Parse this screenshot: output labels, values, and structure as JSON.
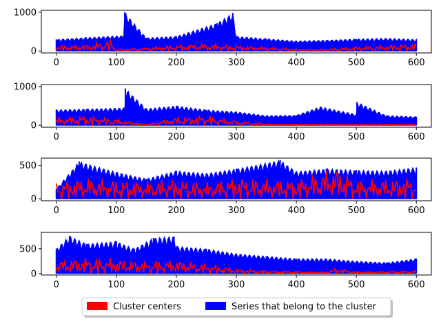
{
  "chart_data": {
    "type": "line",
    "layout": "4 stacked subplots sharing x range",
    "x_ticks": [
      "0",
      "100",
      "200",
      "300",
      "400",
      "500",
      "600"
    ],
    "xlim": [
      -25,
      625
    ],
    "legend": {
      "placement": "bottom-center",
      "entries": [
        {
          "label": "Cluster centers",
          "color": "#ff0000"
        },
        {
          "label": "Series that belong to the cluster",
          "color": "#0000ff"
        }
      ]
    },
    "grid": false,
    "subplots": [
      {
        "ylim": [
          -50,
          1050
        ],
        "y_ticks": [
          "0",
          "1000"
        ],
        "y_tick_values": [
          0,
          1000
        ],
        "series": [
          {
            "role": "cluster-members",
            "color": "#0000ff",
            "x": [
              0,
              50,
              113,
              114,
              150,
              200,
              268,
              294,
              300,
              350,
              400,
              450,
              500,
              550,
              600
            ],
            "y": [
              300,
              350,
              400,
              1000,
              340,
              380,
              720,
              980,
              380,
              320,
              260,
              280,
              310,
              330,
              300
            ]
          },
          {
            "role": "cluster-center",
            "color": "#ff0000",
            "x": [
              0,
              50,
              90,
              100,
              150,
              200,
              250,
              300,
              350,
              400,
              450,
              500,
              550,
              600
            ],
            "y": [
              150,
              170,
              300,
              40,
              90,
              170,
              200,
              150,
              110,
              60,
              50,
              120,
              160,
              200
            ]
          }
        ]
      },
      {
        "ylim": [
          -50,
          1050
        ],
        "y_ticks": [
          "0",
          "1000"
        ],
        "y_tick_values": [
          0,
          1000
        ],
        "series": [
          {
            "role": "cluster-members",
            "color": "#0000ff",
            "x": [
              0,
              50,
              114,
              115,
              150,
              200,
              250,
              300,
              350,
              400,
              440,
              500,
              501,
              550,
              600
            ],
            "y": [
              400,
              420,
              450,
              950,
              430,
              500,
              400,
              350,
              250,
              260,
              480,
              280,
              600,
              250,
              220
            ]
          },
          {
            "role": "cluster-center",
            "color": "#ff0000",
            "x": [
              0,
              50,
              100,
              150,
              200,
              250,
              300,
              350,
              400,
              450,
              500,
              550,
              600
            ],
            "y": [
              200,
              260,
              170,
              20,
              220,
              260,
              120,
              40,
              30,
              30,
              20,
              30,
              20
            ]
          }
        ]
      },
      {
        "ylim": [
          -30,
          610
        ],
        "y_ticks": [
          "0",
          "500"
        ],
        "y_tick_values": [
          0,
          500
        ],
        "series": [
          {
            "role": "cluster-members",
            "color": "#0000ff",
            "x": [
              0,
              38,
              100,
              150,
              200,
              250,
              300,
              373,
              400,
              450,
              500,
              550,
              600
            ],
            "y": [
              150,
              560,
              400,
              300,
              420,
              380,
              450,
              580,
              410,
              450,
              430,
              420,
              470
            ]
          },
          {
            "role": "cluster-center",
            "color": "#ff0000",
            "x": [
              0,
              50,
              100,
              150,
              200,
              250,
              300,
              350,
              400,
              466,
              500,
              550,
              600
            ],
            "y": [
              250,
              320,
              280,
              260,
              300,
              240,
              320,
              300,
              280,
              480,
              280,
              300,
              320
            ]
          }
        ]
      },
      {
        "ylim": [
          -30,
          830
        ],
        "y_ticks": [
          "0",
          "500"
        ],
        "y_tick_values": [
          0,
          500
        ],
        "series": [
          {
            "role": "cluster-members",
            "color": "#0000ff",
            "x": [
              0,
              22,
              50,
              100,
              130,
              162,
              196,
              200,
              250,
              300,
              350,
              400,
              450,
              500,
              550,
              600
            ],
            "y": [
              500,
              760,
              600,
              650,
              500,
              720,
              750,
              550,
              500,
              400,
              350,
              300,
              300,
              250,
              220,
              300
            ]
          },
          {
            "role": "cluster-center",
            "color": "#ff0000",
            "x": [
              0,
              50,
              100,
              150,
              200,
              250,
              300,
              350,
              400,
              450,
              466,
              500,
              550,
              600
            ],
            "y": [
              280,
              320,
              300,
              250,
              280,
              200,
              100,
              60,
              50,
              30,
              120,
              40,
              50,
              60
            ]
          }
        ]
      }
    ]
  }
}
